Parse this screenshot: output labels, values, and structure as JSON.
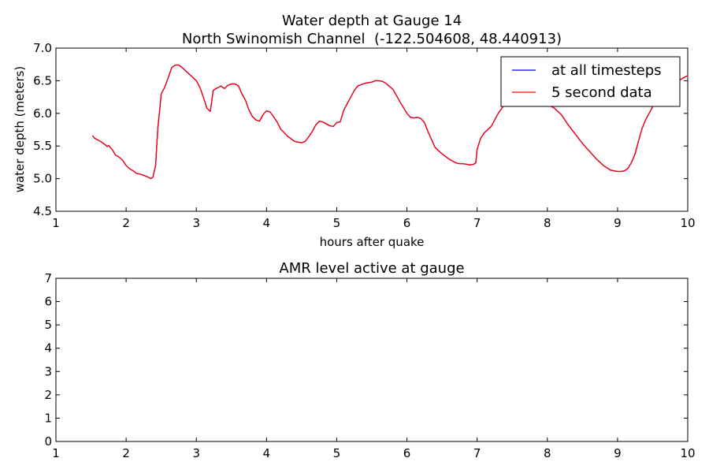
{
  "chart_data": [
    {
      "type": "line",
      "title": "Water depth at Gauge 14",
      "subtitle": "North Swinomish Channel  (-122.504608, 48.440913)",
      "xlabel": "hours after quake",
      "ylabel": "water depth (meters)",
      "xlim": [
        1,
        10
      ],
      "ylim": [
        4.5,
        7.0
      ],
      "xticks": [
        "1",
        "2",
        "3",
        "4",
        "5",
        "6",
        "7",
        "8",
        "9",
        "10"
      ],
      "yticks": [
        "4.5",
        "5.0",
        "5.5",
        "6.0",
        "6.5",
        "7.0"
      ],
      "legend": "top-right",
      "series": [
        {
          "name": "at all timesteps",
          "color": "#0000ff",
          "x": [
            1.52,
            1.55,
            1.6,
            1.65,
            1.7,
            1.73,
            1.75,
            1.78,
            1.8,
            1.85,
            1.9,
            1.95,
            2.0,
            2.05,
            2.1,
            2.15,
            2.2,
            2.25,
            2.3,
            2.35,
            2.38,
            2.42,
            2.45,
            2.5,
            2.55,
            2.6,
            2.65,
            2.7,
            2.75,
            2.8,
            2.85,
            2.9,
            2.95,
            3.0,
            3.05,
            3.1,
            3.15,
            3.2,
            3.24,
            3.28,
            3.32,
            3.35,
            3.4,
            3.45,
            3.5,
            3.55,
            3.6,
            3.65,
            3.7,
            3.75,
            3.8,
            3.85,
            3.9,
            3.95,
            4.0,
            4.05,
            4.1,
            4.15,
            4.2,
            4.3,
            4.4,
            4.5,
            4.55,
            4.6,
            4.65,
            4.7,
            4.75,
            4.8,
            4.85,
            4.9,
            4.95,
            5.0,
            5.05,
            5.1,
            5.15,
            5.2,
            5.25,
            5.3,
            5.4,
            5.5,
            5.55,
            5.6,
            5.65,
            5.7,
            5.8,
            5.9,
            6.0,
            6.05,
            6.1,
            6.15,
            6.2,
            6.25,
            6.3,
            6.4,
            6.5,
            6.6,
            6.7,
            6.75,
            6.8,
            6.9,
            6.95,
            6.98,
            7.0,
            7.05,
            7.1,
            7.2,
            7.3,
            7.4,
            7.5,
            7.6,
            7.7,
            7.8,
            7.9,
            8.0,
            8.1,
            8.2,
            8.3,
            8.4,
            8.5,
            8.6,
            8.7,
            8.8,
            8.9,
            9.0,
            9.05,
            9.1,
            9.15,
            9.2,
            9.25,
            9.3,
            9.35,
            9.4,
            9.5,
            9.6,
            9.7,
            9.8,
            9.9,
            10.0
          ],
          "y": [
            5.66,
            5.62,
            5.59,
            5.56,
            5.52,
            5.49,
            5.51,
            5.47,
            5.45,
            5.36,
            5.33,
            5.28,
            5.2,
            5.15,
            5.12,
            5.08,
            5.07,
            5.05,
            5.03,
            5.0,
            5.02,
            5.2,
            5.75,
            6.3,
            6.4,
            6.55,
            6.7,
            6.74,
            6.74,
            6.7,
            6.65,
            6.6,
            6.55,
            6.5,
            6.4,
            6.25,
            6.08,
            6.03,
            6.35,
            6.38,
            6.4,
            6.42,
            6.38,
            6.43,
            6.45,
            6.45,
            6.42,
            6.3,
            6.2,
            6.05,
            5.95,
            5.9,
            5.88,
            5.98,
            6.04,
            6.02,
            5.95,
            5.87,
            5.76,
            5.65,
            5.57,
            5.55,
            5.57,
            5.64,
            5.72,
            5.82,
            5.88,
            5.87,
            5.84,
            5.81,
            5.8,
            5.86,
            5.87,
            6.05,
            6.15,
            6.25,
            6.35,
            6.42,
            6.46,
            6.48,
            6.5,
            6.5,
            6.49,
            6.46,
            6.37,
            6.18,
            6.0,
            5.94,
            5.93,
            5.94,
            5.92,
            5.86,
            5.72,
            5.48,
            5.38,
            5.3,
            5.24,
            5.23,
            5.23,
            5.21,
            5.22,
            5.24,
            5.45,
            5.62,
            5.7,
            5.8,
            6.0,
            6.15,
            6.33,
            6.42,
            6.46,
            6.38,
            6.22,
            6.14,
            6.08,
            5.98,
            5.82,
            5.68,
            5.54,
            5.42,
            5.3,
            5.2,
            5.13,
            5.11,
            5.11,
            5.12,
            5.16,
            5.25,
            5.38,
            5.58,
            5.77,
            5.9,
            6.1,
            6.28,
            6.4,
            6.45,
            6.52,
            6.58
          ]
        },
        {
          "name": "5 second data",
          "color": "#ff0000",
          "x": [
            1.52,
            1.55,
            1.6,
            1.65,
            1.7,
            1.73,
            1.75,
            1.78,
            1.8,
            1.85,
            1.9,
            1.95,
            2.0,
            2.05,
            2.1,
            2.15,
            2.2,
            2.25,
            2.3,
            2.35,
            2.38,
            2.42,
            2.45,
            2.5,
            2.55,
            2.6,
            2.65,
            2.7,
            2.75,
            2.8,
            2.85,
            2.9,
            2.95,
            3.0,
            3.05,
            3.1,
            3.15,
            3.2,
            3.24,
            3.28,
            3.32,
            3.35,
            3.4,
            3.45,
            3.5,
            3.55,
            3.6,
            3.65,
            3.7,
            3.75,
            3.8,
            3.85,
            3.9,
            3.95,
            4.0,
            4.05,
            4.1,
            4.15,
            4.2,
            4.3,
            4.4,
            4.5,
            4.55,
            4.6,
            4.65,
            4.7,
            4.75,
            4.8,
            4.85,
            4.9,
            4.95,
            5.0,
            5.05,
            5.1,
            5.15,
            5.2,
            5.25,
            5.3,
            5.4,
            5.5,
            5.55,
            5.6,
            5.65,
            5.7,
            5.8,
            5.9,
            6.0,
            6.05,
            6.1,
            6.15,
            6.2,
            6.25,
            6.3,
            6.4,
            6.5,
            6.6,
            6.7,
            6.75,
            6.8,
            6.9,
            6.95,
            6.98,
            7.0,
            7.05,
            7.1,
            7.2,
            7.3,
            7.4,
            7.5,
            7.6,
            7.7,
            7.8,
            7.9,
            8.0,
            8.1,
            8.2,
            8.3,
            8.4,
            8.5,
            8.6,
            8.7,
            8.8,
            8.9,
            9.0,
            9.05,
            9.1,
            9.15,
            9.2,
            9.25,
            9.3,
            9.35,
            9.4,
            9.5,
            9.6,
            9.7,
            9.8,
            9.9,
            10.0
          ],
          "y": [
            5.66,
            5.62,
            5.59,
            5.56,
            5.52,
            5.49,
            5.51,
            5.47,
            5.45,
            5.36,
            5.33,
            5.28,
            5.2,
            5.15,
            5.12,
            5.08,
            5.07,
            5.05,
            5.03,
            5.0,
            5.02,
            5.2,
            5.75,
            6.3,
            6.4,
            6.55,
            6.7,
            6.74,
            6.74,
            6.7,
            6.65,
            6.6,
            6.55,
            6.5,
            6.4,
            6.25,
            6.08,
            6.03,
            6.35,
            6.38,
            6.4,
            6.42,
            6.38,
            6.43,
            6.45,
            6.45,
            6.42,
            6.3,
            6.2,
            6.05,
            5.95,
            5.9,
            5.88,
            5.98,
            6.04,
            6.02,
            5.95,
            5.87,
            5.76,
            5.65,
            5.57,
            5.55,
            5.57,
            5.64,
            5.72,
            5.82,
            5.88,
            5.87,
            5.84,
            5.81,
            5.8,
            5.86,
            5.87,
            6.05,
            6.15,
            6.25,
            6.35,
            6.42,
            6.46,
            6.48,
            6.5,
            6.5,
            6.49,
            6.46,
            6.37,
            6.18,
            6.0,
            5.94,
            5.93,
            5.94,
            5.92,
            5.86,
            5.72,
            5.48,
            5.38,
            5.3,
            5.24,
            5.23,
            5.23,
            5.21,
            5.22,
            5.24,
            5.45,
            5.62,
            5.7,
            5.8,
            6.0,
            6.15,
            6.33,
            6.42,
            6.46,
            6.38,
            6.22,
            6.14,
            6.08,
            5.98,
            5.82,
            5.68,
            5.54,
            5.42,
            5.3,
            5.2,
            5.13,
            5.11,
            5.11,
            5.12,
            5.16,
            5.25,
            5.38,
            5.58,
            5.77,
            5.9,
            6.1,
            6.28,
            6.4,
            6.45,
            6.52,
            6.58
          ]
        }
      ]
    },
    {
      "type": "line",
      "title": "AMR level active at gauge",
      "xlabel": "",
      "ylabel": "",
      "xlim": [
        1,
        10
      ],
      "ylim": [
        0,
        7
      ],
      "xticks": [
        "1",
        "2",
        "3",
        "4",
        "5",
        "6",
        "7",
        "8",
        "9",
        "10"
      ],
      "yticks": [
        "0",
        "1",
        "2",
        "3",
        "4",
        "5",
        "6",
        "7"
      ],
      "series": []
    }
  ]
}
